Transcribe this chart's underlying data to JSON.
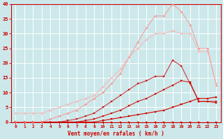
{
  "title": "",
  "xlabel": "Vent moyen/en rafales ( km/h )",
  "ylabel": "",
  "xlim": [
    -0.5,
    23.5
  ],
  "ylim": [
    0,
    40
  ],
  "xtick_labels": [
    "0",
    "1",
    "2",
    "3",
    "4",
    "5",
    "6",
    "7",
    "8",
    "9",
    "10",
    "11",
    "12",
    "13",
    "14",
    "15",
    "16",
    "17",
    "18",
    "19",
    "20",
    "21",
    "22",
    "23"
  ],
  "ytick_labels": [
    "0",
    "5",
    "10",
    "15",
    "20",
    "25",
    "30",
    "35",
    "40"
  ],
  "background_color": "#cce8ea",
  "grid_color": "#ffffff",
  "axis_color": "#cc0000",
  "label_color": "#cc0000",
  "lines": [
    {
      "x": [
        0,
        1,
        2,
        3,
        4,
        5,
        6,
        7,
        8,
        9,
        10,
        11,
        12,
        13,
        14,
        15,
        16,
        17,
        18,
        19,
        20,
        21,
        22,
        23
      ],
      "y": [
        0,
        0,
        0,
        0,
        0,
        0,
        0,
        0,
        0,
        0,
        0,
        0,
        0,
        0,
        0,
        0,
        0,
        0,
        0,
        0,
        0,
        0,
        0,
        0
      ],
      "color": "#cc0000",
      "alpha": 1.0,
      "linewidth": 0.8,
      "marker": "s",
      "markersize": 1.5
    },
    {
      "x": [
        0,
        1,
        2,
        3,
        4,
        5,
        6,
        7,
        8,
        9,
        10,
        11,
        12,
        13,
        14,
        15,
        16,
        17,
        18,
        19,
        20,
        21,
        22,
        23
      ],
      "y": [
        0,
        0,
        0,
        0,
        0,
        0,
        0,
        0,
        0,
        0,
        0.5,
        1,
        1.5,
        2,
        2.5,
        3,
        3.5,
        4,
        5,
        6,
        7,
        8,
        8,
        8.5
      ],
      "color": "#cc0000",
      "alpha": 1.0,
      "linewidth": 0.8,
      "marker": "s",
      "markersize": 1.5
    },
    {
      "x": [
        0,
        1,
        2,
        3,
        4,
        5,
        6,
        7,
        8,
        9,
        10,
        11,
        12,
        13,
        14,
        15,
        16,
        17,
        18,
        19,
        20,
        21,
        22,
        23
      ],
      "y": [
        0,
        0,
        0,
        0,
        0,
        0,
        0,
        0,
        0.5,
        1,
        2,
        3,
        4,
        5.5,
        7,
        8,
        9.5,
        11,
        12.5,
        14,
        13.5,
        7,
        7,
        7
      ],
      "color": "#cc0000",
      "alpha": 0.85,
      "linewidth": 0.8,
      "marker": "s",
      "markersize": 1.5
    },
    {
      "x": [
        0,
        1,
        2,
        3,
        4,
        5,
        6,
        7,
        8,
        9,
        10,
        11,
        12,
        13,
        14,
        15,
        16,
        17,
        18,
        19,
        20,
        21,
        22,
        23
      ],
      "y": [
        0,
        0,
        0,
        0,
        0,
        0,
        0.5,
        1,
        2,
        3,
        5,
        7,
        9,
        11,
        13,
        14,
        15.5,
        15.5,
        21,
        19,
        13,
        7,
        7,
        6.5
      ],
      "color": "#cc0000",
      "alpha": 0.75,
      "linewidth": 0.8,
      "marker": "s",
      "markersize": 1.5
    },
    {
      "x": [
        0,
        1,
        2,
        3,
        4,
        5,
        6,
        7,
        8,
        9,
        10,
        11,
        12,
        13,
        14,
        15,
        16,
        17,
        18,
        19,
        20,
        21,
        22,
        23
      ],
      "y": [
        0,
        0,
        0,
        0,
        1,
        2,
        3,
        4,
        6,
        8,
        10,
        13,
        16.5,
        22,
        27,
        32,
        36,
        36,
        40,
        37.5,
        33,
        25,
        25,
        12.5
      ],
      "color": "#ff8888",
      "alpha": 0.75,
      "linewidth": 0.8,
      "marker": "D",
      "markersize": 1.5
    },
    {
      "x": [
        0,
        1,
        2,
        3,
        4,
        5,
        6,
        7,
        8,
        9,
        10,
        11,
        12,
        13,
        14,
        15,
        16,
        17,
        18,
        19,
        20,
        21,
        22,
        23
      ],
      "y": [
        3,
        3,
        3,
        3,
        4,
        5,
        6,
        7,
        8,
        9,
        12,
        15,
        18,
        22,
        25,
        28,
        30,
        30,
        31,
        30,
        30,
        24,
        24,
        13
      ],
      "color": "#ffaaaa",
      "alpha": 0.7,
      "linewidth": 0.8,
      "marker": "D",
      "markersize": 1.5
    }
  ]
}
